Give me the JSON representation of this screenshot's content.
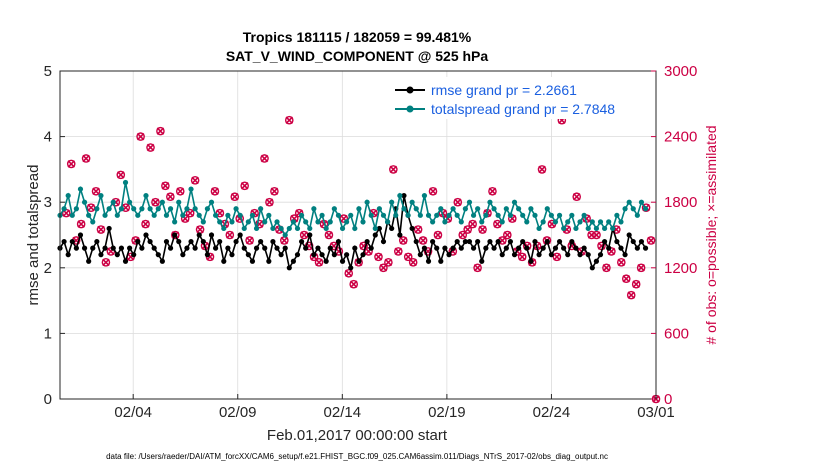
{
  "chart_data": {
    "type": "line",
    "title_line1": "Tropics 181115 / 182059 = 99.481%",
    "title_line2": "SAT_V_WIND_COMPONENT @ 525 hPa",
    "ylabel": "rmse and totalspread",
    "ylabel_right": "# of obs: o=possible; ×=assimilated",
    "xlabel": "Feb.01,2017 00:00:00 start",
    "footer": "data file: /Users/raeder/DAI/ATM_forcXX/CAM6_setup/f.e21.FHIST_BGC.f09_025.CAM6assim.011/Diags_NTrS_2017-02/obs_diag_output.nc",
    "ylim": [
      0,
      5
    ],
    "ylim_right": [
      0,
      3000
    ],
    "xlim": [
      0.5,
      29
    ],
    "y_ticks": [
      "0",
      "1",
      "2",
      "3",
      "4",
      "5"
    ],
    "y_ticks_right": [
      "0",
      "600",
      "1200",
      "1800",
      "2400",
      "3000"
    ],
    "x_ticks": [
      {
        "day": 4,
        "label": "02/04"
      },
      {
        "day": 9,
        "label": "02/09"
      },
      {
        "day": 14,
        "label": "02/14"
      },
      {
        "day": 19,
        "label": "02/19"
      },
      {
        "day": 24,
        "label": "02/24"
      },
      {
        "day": 29,
        "label": "03/01"
      }
    ],
    "series": [
      {
        "name": "rmse grand pr = 2.2661",
        "color": "#000000",
        "values": [
          2.3,
          2.4,
          2.2,
          2.4,
          2.3,
          2.5,
          2.3,
          2.1,
          2.3,
          2.4,
          2.2,
          2.3,
          2.6,
          2.3,
          2.2,
          2.3,
          2.1,
          2.3,
          2.2,
          2.4,
          2.3,
          2.5,
          2.4,
          2.3,
          2.2,
          2.1,
          2.4,
          2.3,
          2.5,
          2.4,
          2.2,
          2.3,
          2.4,
          2.3,
          2.5,
          2.4,
          2.2,
          2.5,
          2.3,
          2.4,
          2.1,
          2.3,
          2.2,
          2.4,
          2.5,
          2.3,
          2.2,
          2.1,
          2.3,
          2.4,
          2.3,
          2.1,
          2.4,
          2.3,
          2.2,
          2.3,
          2.0,
          2.1,
          2.2,
          2.4,
          2.3,
          2.5,
          2.2,
          2.3,
          2.2,
          2.1,
          2.3,
          2.2,
          2.4,
          2.1,
          2.2,
          2.0,
          2.3,
          2.1,
          2.2,
          2.4,
          2.3,
          2.5,
          2.6,
          2.4,
          2.7,
          2.6,
          2.9,
          2.5,
          3.1,
          2.8,
          2.6,
          2.4,
          2.2,
          2.3,
          2.1,
          2.4,
          2.3,
          2.1,
          2.3,
          2.2,
          2.3,
          2.4,
          2.3,
          2.4,
          2.4,
          2.3,
          2.4,
          2.1,
          2.3,
          2.4,
          2.3,
          2.4,
          2.2,
          2.3,
          2.4,
          2.2,
          2.3,
          2.4,
          2.3,
          2.1,
          2.4,
          2.2,
          2.3,
          2.4,
          2.2,
          2.3,
          2.4,
          2.3,
          2.2,
          2.4,
          2.3,
          2.2,
          2.3,
          2.2,
          2.0,
          2.1,
          2.2,
          2.4,
          2.3,
          2.6,
          2.4,
          2.3,
          2.2,
          2.5,
          2.4,
          2.3,
          2.4,
          2.3
        ]
      },
      {
        "name": "totalspread grand pr = 2.7848",
        "color": "#008080",
        "values": [
          2.8,
          2.9,
          3.1,
          2.8,
          2.9,
          3.2,
          3.0,
          2.8,
          2.7,
          2.9,
          3.1,
          2.8,
          2.9,
          3.0,
          2.8,
          2.9,
          3.3,
          3.0,
          2.9,
          2.8,
          2.9,
          3.1,
          2.9,
          2.8,
          2.9,
          3.0,
          2.8,
          2.9,
          2.7,
          3.0,
          2.8,
          2.9,
          3.2,
          2.9,
          2.8,
          2.7,
          2.9,
          3.0,
          2.8,
          2.7,
          2.6,
          2.8,
          2.7,
          2.9,
          2.8,
          2.6,
          2.7,
          2.8,
          2.6,
          2.9,
          2.7,
          2.8,
          2.6,
          2.7,
          2.6,
          2.5,
          2.6,
          2.7,
          2.6,
          2.8,
          2.7,
          2.6,
          2.9,
          2.7,
          2.8,
          2.6,
          2.7,
          2.9,
          2.8,
          2.6,
          2.7,
          2.8,
          2.6,
          2.9,
          2.7,
          3.0,
          2.8,
          2.6,
          2.9,
          2.8,
          2.7,
          3.0,
          2.8,
          3.1,
          2.9,
          2.8,
          3.0,
          2.9,
          2.8,
          3.1,
          2.8,
          2.7,
          2.8,
          2.9,
          2.7,
          2.8,
          2.9,
          2.8,
          2.7,
          2.9,
          3.0,
          2.8,
          2.9,
          2.7,
          2.8,
          3.0,
          2.9,
          2.8,
          2.7,
          2.9,
          2.8,
          3.0,
          2.9,
          2.8,
          2.7,
          2.9,
          2.8,
          2.6,
          2.7,
          2.9,
          2.8,
          2.7,
          2.8,
          2.6,
          2.7,
          2.8,
          2.6,
          2.7,
          2.8,
          2.6,
          2.7,
          2.6,
          2.7,
          2.6,
          2.7,
          2.6,
          2.8,
          2.7,
          2.9,
          3.0,
          2.9,
          2.8,
          3.0,
          2.9
        ]
      }
    ],
    "obs_possible": [
      1700,
      2150,
      1450,
      1600,
      2200,
      1750,
      1900,
      1550,
      1250,
      1350,
      1800,
      2050,
      1750,
      1300,
      1450,
      2400,
      1600,
      2300,
      1800,
      2450,
      1950,
      1850,
      1500,
      1900,
      1650,
      1700,
      2000,
      1550,
      1400,
      1300,
      1900,
      1700,
      1600,
      1500,
      1850,
      1650,
      1950,
      1450,
      1700,
      1600,
      2200,
      1800,
      1900,
      1550,
      1450,
      2550,
      1650,
      1700,
      1500,
      1400,
      1300,
      1250,
      1600,
      1500,
      1400,
      1350,
      1650,
      1150,
      1050,
      1250,
      1400,
      1350,
      1700,
      1300,
      1200,
      1250,
      2100,
      1350,
      1450,
      1300,
      1250,
      1550,
      1450,
      1350,
      1900,
      1500,
      1700,
      1650,
      1350,
      1800,
      1500,
      1550,
      1600,
      1200,
      1550,
      1700,
      1900,
      1600,
      1450,
      1500,
      1650,
      1350,
      1300,
      1400,
      1250,
      1400,
      2100,
      1450,
      1600,
      1300,
      2550,
      1550,
      1400,
      1850,
      1350,
      1650,
      1500,
      1500,
      1400,
      1200,
      1350,
      1550,
      1250,
      1100,
      950,
      1050,
      1200,
      1750,
      1450,
      0
    ],
    "obs_assimilated": [
      1700,
      2150,
      1450,
      1600,
      2200,
      1750,
      1900,
      1550,
      1250,
      1350,
      1800,
      2050,
      1750,
      1300,
      1450,
      2400,
      1600,
      2300,
      1800,
      2450,
      1950,
      1850,
      1500,
      1900,
      1650,
      1700,
      2000,
      1550,
      1400,
      1300,
      1900,
      1700,
      1600,
      1500,
      1850,
      1650,
      1950,
      1450,
      1700,
      1600,
      2200,
      1800,
      1900,
      1550,
      1450,
      2550,
      1650,
      1700,
      1500,
      1400,
      1300,
      1250,
      1600,
      1500,
      1400,
      1350,
      1650,
      1150,
      1050,
      1250,
      1400,
      1350,
      1700,
      1300,
      1200,
      1250,
      2100,
      1350,
      1450,
      1300,
      1250,
      1550,
      1450,
      1350,
      1900,
      1500,
      1700,
      1650,
      1350,
      1800,
      1500,
      1550,
      1600,
      1200,
      1550,
      1700,
      1900,
      1600,
      1450,
      1500,
      1650,
      1350,
      1300,
      1400,
      1250,
      1400,
      2100,
      1450,
      1600,
      1300,
      2550,
      1550,
      1400,
      1850,
      1350,
      1650,
      1500,
      1500,
      1400,
      1200,
      1350,
      1550,
      1250,
      1100,
      950,
      1050,
      1200,
      1750,
      1450,
      0
    ],
    "obs_color": "#cc0044"
  }
}
